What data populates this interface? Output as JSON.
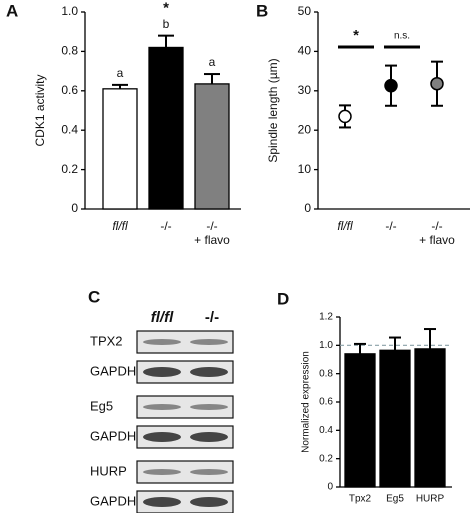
{
  "chart_data": [
    {
      "type": "bar",
      "panel": "A",
      "ylabel": "CDK1 activity",
      "categories": [
        "fl/fl",
        "-/-",
        "-/-\n+ flavo"
      ],
      "values": [
        0.61,
        0.82,
        0.635
      ],
      "errors": [
        0.02,
        0.06,
        0.05
      ],
      "colors": [
        "#ffffff",
        "#000000",
        "#808080"
      ],
      "letters": [
        "a",
        "b",
        "a"
      ],
      "stars": [
        null,
        "*",
        null
      ],
      "ylim": [
        0,
        1
      ],
      "yticks": [
        0,
        0.2,
        0.4,
        0.6,
        0.8,
        {
          "value": 1,
          "label": "1.0"
        }
      ]
    },
    {
      "type": "dot",
      "panel": "B",
      "ylabel": "Spindle length (µm)",
      "categories": [
        "fl/fl",
        "-/-",
        "-/-\n+ flavo"
      ],
      "values": [
        23.5,
        31.3,
        31.8
      ],
      "errors": [
        2.8,
        5.1,
        5.6
      ],
      "colors": [
        "#ffffff",
        "#000000",
        "#808080"
      ],
      "comparisons": [
        "*",
        "n.s."
      ],
      "ylim": [
        0,
        50
      ],
      "yticks": [
        0,
        10,
        20,
        30,
        40,
        50
      ]
    },
    {
      "type": "bar",
      "panel": "D",
      "ylabel": "Normalized expression",
      "categories": [
        "Tpx2",
        "Eg5",
        "HURP"
      ],
      "values": [
        0.94,
        0.965,
        0.975
      ],
      "errors": [
        0.07,
        0.09,
        0.14
      ],
      "colors": [
        "#000000",
        "#000000",
        "#000000"
      ],
      "reference": 1,
      "ylim": [
        0,
        1.2
      ],
      "yticks": [
        0,
        0.2,
        0.4,
        0.6,
        0.8,
        {
          "value": 1,
          "label": "1.0"
        },
        {
          "value": 1.2,
          "label": "1.2"
        }
      ]
    }
  ],
  "blot": {
    "panel": "C",
    "columns": [
      "fl/fl",
      "-/-"
    ],
    "rows": [
      "TPX2",
      "GAPDH",
      "Eg5",
      "GAPDH",
      "HURP",
      "GAPDH"
    ]
  }
}
